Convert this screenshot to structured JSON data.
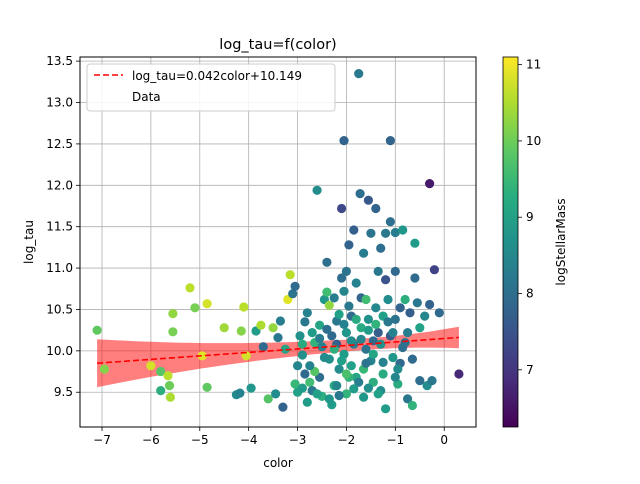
{
  "chart_data": {
    "type": "scatter",
    "title": "log_tau=f(color)",
    "xlabel": "color",
    "ylabel": "log_tau",
    "xlim": [
      -7.45,
      0.65
    ],
    "ylim": [
      9.08,
      13.55
    ],
    "xticks": [
      -7,
      -6,
      -5,
      -4,
      -3,
      -2,
      -1,
      0
    ],
    "yticks": [
      9.5,
      10.0,
      10.5,
      11.0,
      11.5,
      12.0,
      12.5,
      13.0,
      13.5
    ],
    "xtick_labels": [
      "−7",
      "−6",
      "−5",
      "−4",
      "−3",
      "−2",
      "−1",
      "0"
    ],
    "ytick_labels": [
      "9.5",
      "10.0",
      "10.5",
      "11.0",
      "11.5",
      "12.0",
      "12.5",
      "13.0",
      "13.5"
    ],
    "grid": true,
    "legend": {
      "placement": "top-left",
      "entries": [
        "log_tau=0.042color+10.149",
        "Data"
      ]
    },
    "fit": {
      "slope": 0.042,
      "intercept": 10.149,
      "x_range": [
        -7.1,
        0.3
      ],
      "band_halfwidth_ends": [
        0.29,
        0.13
      ],
      "band_center_x": -1.5,
      "band_halfwidth_min": 0.07,
      "color": "#ff0000"
    },
    "colorbar": {
      "label": "logStellarMass",
      "min": 6.25,
      "max": 11.1,
      "ticks": [
        7,
        8,
        9,
        10,
        11
      ],
      "tick_labels": [
        "7",
        "8",
        "9",
        "10",
        "11"
      ],
      "colormap": "viridis"
    },
    "points": [
      [
        -7.1,
        10.25,
        9.9
      ],
      [
        -6.95,
        9.78,
        10.2
      ],
      [
        -6.0,
        9.82,
        10.8
      ],
      [
        -5.8,
        9.75,
        9.8
      ],
      [
        -5.8,
        9.52,
        9.3
      ],
      [
        -5.62,
        9.58,
        10.0
      ],
      [
        -5.6,
        9.44,
        10.5
      ],
      [
        -5.65,
        9.7,
        10.6
      ],
      [
        -5.55,
        10.45,
        10.3
      ],
      [
        -5.55,
        10.23,
        10.1
      ],
      [
        -5.2,
        10.76,
        10.6
      ],
      [
        -5.1,
        10.52,
        10.1
      ],
      [
        -4.95,
        9.94,
        10.9
      ],
      [
        -4.85,
        9.56,
        9.9
      ],
      [
        -4.85,
        10.57,
        10.8
      ],
      [
        -4.5,
        10.28,
        10.4
      ],
      [
        -4.25,
        9.47,
        8.6
      ],
      [
        -4.18,
        9.49,
        8.4
      ],
      [
        -4.15,
        10.24,
        10.2
      ],
      [
        -4.1,
        10.53,
        10.6
      ],
      [
        -4.05,
        9.94,
        10.8
      ],
      [
        -3.95,
        9.55,
        8.8
      ],
      [
        -3.85,
        10.24,
        8.9
      ],
      [
        -3.75,
        10.31,
        10.5
      ],
      [
        -3.7,
        10.05,
        7.9
      ],
      [
        -3.6,
        9.42,
        9.8
      ],
      [
        -3.5,
        10.28,
        10.3
      ],
      [
        -3.45,
        9.48,
        8.6
      ],
      [
        -3.4,
        10.16,
        8.2
      ],
      [
        -3.35,
        10.36,
        8.3
      ],
      [
        -3.3,
        9.32,
        7.8
      ],
      [
        -3.25,
        10.02,
        9.1
      ],
      [
        -3.2,
        10.62,
        10.9
      ],
      [
        -3.15,
        10.92,
        10.6
      ],
      [
        -3.1,
        10.69,
        8.1
      ],
      [
        -3.05,
        10.78,
        7.9
      ],
      [
        -3.05,
        9.6,
        9.5
      ],
      [
        -3.0,
        9.5,
        9.0
      ],
      [
        -3.0,
        9.82,
        8.5
      ],
      [
        -2.95,
        10.18,
        8.7
      ],
      [
        -2.9,
        10.08,
        9.2
      ],
      [
        -2.9,
        9.55,
        8.9
      ],
      [
        -2.85,
        9.72,
        7.9
      ],
      [
        -2.8,
        10.46,
        8.4
      ],
      [
        -2.8,
        9.38,
        8.9
      ],
      [
        -2.75,
        9.62,
        9.6
      ],
      [
        -2.7,
        10.22,
        8.9
      ],
      [
        -2.7,
        9.52,
        8.2
      ],
      [
        -2.65,
        10.1,
        9.4
      ],
      [
        -2.6,
        11.94,
        8.6
      ],
      [
        -2.55,
        9.68,
        8.0
      ],
      [
        -2.55,
        10.31,
        9.1
      ],
      [
        -2.5,
        10.05,
        8.4
      ],
      [
        -2.5,
        9.45,
        9.3
      ],
      [
        -2.45,
        10.62,
        8.8
      ],
      [
        -2.4,
        10.71,
        9.6
      ],
      [
        -2.4,
        11.07,
        8.0
      ],
      [
        -2.35,
        10.55,
        10.3
      ],
      [
        -2.35,
        9.9,
        8.7
      ],
      [
        -2.3,
        10.18,
        7.9
      ],
      [
        -2.3,
        9.35,
        8.9
      ],
      [
        -2.25,
        10.64,
        8.3
      ],
      [
        -2.25,
        9.58,
        9.2
      ],
      [
        -2.2,
        10.08,
        7.7
      ],
      [
        -2.2,
        10.36,
        8.2
      ],
      [
        -2.15,
        10.44,
        9.0
      ],
      [
        -2.15,
        9.78,
        8.6
      ],
      [
        -2.1,
        11.72,
        7.3
      ],
      [
        -2.1,
        10.88,
        8.0
      ],
      [
        -2.05,
        12.54,
        7.8
      ],
      [
        -2.05,
        10.72,
        8.5
      ],
      [
        -2.05,
        9.96,
        8.9
      ],
      [
        -2.0,
        10.96,
        8.1
      ],
      [
        -2.0,
        10.22,
        8.8
      ],
      [
        -2.0,
        9.48,
        9.4
      ],
      [
        -1.95,
        10.54,
        8.2
      ],
      [
        -1.95,
        11.28,
        7.8
      ],
      [
        -1.9,
        9.82,
        9.0
      ],
      [
        -1.9,
        10.42,
        7.9
      ],
      [
        -1.85,
        11.46,
        7.7
      ],
      [
        -1.85,
        10.08,
        8.3
      ],
      [
        -1.8,
        10.82,
        8.4
      ],
      [
        -1.8,
        9.68,
        9.1
      ],
      [
        -1.75,
        13.35,
        8.2
      ],
      [
        -1.72,
        11.9,
        8.0
      ],
      [
        -1.7,
        10.64,
        7.8
      ],
      [
        -1.7,
        10.28,
        9.2
      ],
      [
        -1.65,
        9.44,
        8.8
      ],
      [
        -1.65,
        11.18,
        8.3
      ],
      [
        -1.6,
        10.02,
        8.1
      ],
      [
        -1.6,
        10.62,
        9.6
      ],
      [
        -1.55,
        11.82,
        7.6
      ],
      [
        -1.55,
        10.38,
        8.7
      ],
      [
        -1.5,
        9.88,
        8.4
      ],
      [
        -1.5,
        11.42,
        8.1
      ],
      [
        -1.45,
        10.12,
        7.9
      ],
      [
        -1.45,
        9.62,
        9.3
      ],
      [
        -1.4,
        11.72,
        7.8
      ],
      [
        -1.4,
        10.52,
        8.5
      ],
      [
        -1.35,
        10.96,
        8.2
      ],
      [
        -1.35,
        10.22,
        7.7
      ],
      [
        -1.3,
        9.52,
        8.6
      ],
      [
        -1.3,
        11.24,
        8.0
      ],
      [
        -1.25,
        10.42,
        9.0
      ],
      [
        -1.25,
        9.86,
        8.4
      ],
      [
        -1.2,
        10.86,
        7.5
      ],
      [
        -1.2,
        11.42,
        8.2
      ],
      [
        -1.2,
        9.3,
        8.9
      ],
      [
        -1.15,
        10.62,
        8.6
      ],
      [
        -1.1,
        12.54,
        7.8
      ],
      [
        -1.1,
        11.56,
        8.0
      ],
      [
        -1.1,
        10.18,
        7.6
      ],
      [
        -1.05,
        9.92,
        8.8
      ],
      [
        -1.0,
        11.43,
        8.3
      ],
      [
        -1.0,
        10.96,
        7.9
      ],
      [
        -1.0,
        10.38,
        8.1
      ],
      [
        -0.95,
        9.6,
        9.2
      ],
      [
        -0.9,
        10.52,
        7.8
      ],
      [
        -0.9,
        9.85,
        7.9
      ],
      [
        -0.85,
        11.46,
        8.8
      ],
      [
        -0.8,
        10.62,
        9.3
      ],
      [
        -0.8,
        10.1,
        8.1
      ],
      [
        -0.75,
        9.42,
        8.2
      ],
      [
        -0.7,
        10.46,
        7.7
      ],
      [
        -0.65,
        9.34,
        9.4
      ],
      [
        -0.6,
        10.88,
        7.9
      ],
      [
        -0.6,
        11.3,
        8.9
      ],
      [
        -0.55,
        10.58,
        8.2
      ],
      [
        -0.5,
        10.28,
        9.0
      ],
      [
        -0.5,
        9.64,
        8.0
      ],
      [
        -0.4,
        10.42,
        8.5
      ],
      [
        -0.35,
        9.58,
        8.6
      ],
      [
        -0.3,
        12.02,
        6.6
      ],
      [
        -0.3,
        10.56,
        7.8
      ],
      [
        -0.25,
        9.64,
        8.2
      ],
      [
        -0.2,
        10.98,
        7.2
      ],
      [
        -0.1,
        10.46,
        7.9
      ],
      [
        0.3,
        9.72,
        6.8
      ],
      [
        -2.1,
        9.88,
        9.0
      ],
      [
        -1.75,
        9.62,
        8.3
      ],
      [
        -2.45,
        9.92,
        8.6
      ],
      [
        -1.3,
        10.08,
        8.7
      ],
      [
        -2.65,
        9.75,
        9.8
      ],
      [
        -1.95,
        9.68,
        9.4
      ],
      [
        -1.55,
        10.25,
        8.9
      ],
      [
        -2.2,
        9.58,
        8.5
      ],
      [
        -1.05,
        10.22,
        8.4
      ],
      [
        -2.85,
        10.35,
        8.2
      ],
      [
        -0.85,
        10.04,
        8.0
      ],
      [
        -1.65,
        9.78,
        9.5
      ],
      [
        -2.35,
        9.42,
        8.8
      ],
      [
        -1.45,
        9.96,
        9.1
      ],
      [
        -2.05,
        10.32,
        8.4
      ],
      [
        -1.85,
        9.54,
        8.9
      ],
      [
        -1.25,
        9.72,
        9.2
      ],
      [
        -2.55,
        10.15,
        8.3
      ],
      [
        -0.95,
        9.78,
        8.6
      ],
      [
        -1.7,
        10.14,
        8.5
      ],
      [
        -2.25,
        10.02,
        9.3
      ],
      [
        -1.35,
        9.48,
        9.0
      ],
      [
        -2.75,
        9.82,
        8.4
      ],
      [
        -1.15,
        10.35,
        8.2
      ],
      [
        -2.0,
        9.72,
        9.7
      ],
      [
        -1.55,
        9.55,
        8.7
      ],
      [
        -2.4,
        10.26,
        8.0
      ],
      [
        -0.75,
        10.22,
        8.3
      ],
      [
        -1.9,
        10.12,
        8.6
      ],
      [
        -2.6,
        9.48,
        9.0
      ],
      [
        -1.4,
        10.32,
        9.4
      ],
      [
        -2.15,
        9.46,
        8.2
      ],
      [
        -1.0,
        9.68,
        8.5
      ],
      [
        -2.9,
        9.95,
        8.7
      ],
      [
        -1.6,
        9.85,
        8.1
      ],
      [
        -1.8,
        10.38,
        9.2
      ],
      [
        -0.65,
        9.9,
        7.9
      ]
    ]
  }
}
